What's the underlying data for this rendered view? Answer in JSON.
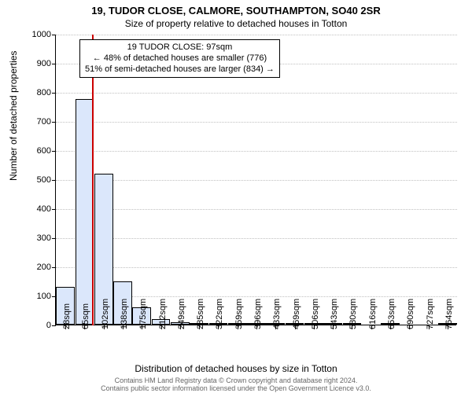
{
  "title_main": "19, TUDOR CLOSE, CALMORE, SOUTHAMPTON, SO40 2SR",
  "title_sub": "Size of property relative to detached houses in Totton",
  "y_axis_title": "Number of detached properties",
  "x_axis_title": "Distribution of detached houses by size in Totton",
  "footer_line1": "Contains HM Land Registry data © Crown copyright and database right 2024.",
  "footer_line2": "Contains public sector information licensed under the Open Government Licence v3.0.",
  "chart": {
    "type": "histogram",
    "ylim": [
      0,
      1000
    ],
    "ytick_step": 100,
    "x_labels": [
      "28sqm",
      "65sqm",
      "102sqm",
      "138sqm",
      "175sqm",
      "212sqm",
      "249sqm",
      "285sqm",
      "322sqm",
      "359sqm",
      "396sqm",
      "433sqm",
      "469sqm",
      "506sqm",
      "543sqm",
      "580sqm",
      "616sqm",
      "653sqm",
      "690sqm",
      "727sqm",
      "764sqm"
    ],
    "bar_values": [
      130,
      775,
      520,
      150,
      60,
      20,
      8,
      3,
      2,
      2,
      2,
      1,
      1,
      1,
      1,
      1,
      0,
      1,
      0,
      0,
      1
    ],
    "bar_fill": "#dbe7fb",
    "bar_stroke": "#000000",
    "background_color": "#ffffff",
    "grid_color": "#c0c0c0",
    "reference_line": {
      "value_sqm": 97,
      "color": "#cc0000"
    }
  },
  "annotation": {
    "line1": "19 TUDOR CLOSE: 97sqm",
    "line2": "← 48% of detached houses are smaller (776)",
    "line3": "51% of semi-detached houses are larger (834) →"
  }
}
